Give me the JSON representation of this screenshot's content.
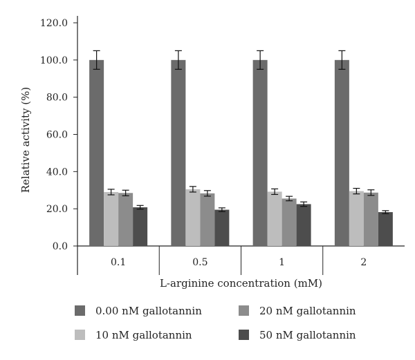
{
  "chart_data": {
    "type": "bar",
    "xlabel": "L-arginine concentration (mM)",
    "ylabel": "Relative activity (%)",
    "ylim": [
      0,
      120
    ],
    "yticks": [
      "0.0",
      "20.0",
      "40.0",
      "60.0",
      "80.0",
      "100.0",
      "120.0"
    ],
    "categories": [
      "0.1",
      "0.5",
      "1",
      "2"
    ],
    "series": [
      {
        "name": "0.00 nM gallotannin",
        "color": "#6b6b6b",
        "values": [
          100,
          100,
          100,
          100
        ],
        "errors": [
          5,
          5,
          5,
          5
        ]
      },
      {
        "name": "10 nM gallotannin",
        "color": "#bdbdbd",
        "values": [
          29,
          30.5,
          29.2,
          29.5
        ],
        "errors": [
          1.5,
          1.5,
          1.5,
          1.5
        ]
      },
      {
        "name": "20 nM gallotannin",
        "color": "#8c8c8c",
        "values": [
          28.5,
          28.3,
          25.5,
          28.7
        ],
        "errors": [
          1.5,
          1.5,
          1.2,
          1.5
        ]
      },
      {
        "name": "50 nM gallotannin",
        "color": "#4d4d4d",
        "values": [
          20.8,
          19.5,
          22.5,
          18.2
        ],
        "errors": [
          1.0,
          1.0,
          1.2,
          0.8
        ]
      }
    ],
    "legend": {
      "placement": "bottom",
      "order": [
        0,
        2,
        1,
        3
      ]
    },
    "grid": false
  }
}
